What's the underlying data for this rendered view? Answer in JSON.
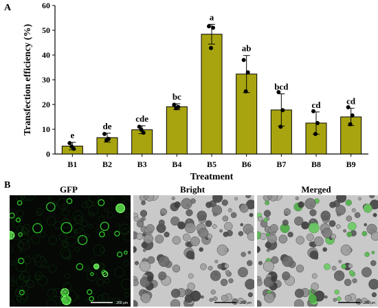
{
  "panels": {
    "a": "A",
    "b": "B"
  },
  "chart_data": {
    "type": "bar",
    "xlabel": "Treatment",
    "ylabel": "Transfection efficiency (%)",
    "ylim": [
      0,
      60
    ],
    "yticks": [
      "0",
      "10",
      "20",
      "30",
      "40",
      "50",
      "60"
    ],
    "categories": [
      "B1",
      "B2",
      "B3",
      "B4",
      "B5",
      "B6",
      "B7",
      "B8",
      "B9"
    ],
    "values": [
      3.2,
      6.6,
      9.8,
      19.1,
      48.4,
      32.3,
      17.8,
      12.5,
      15.0
    ],
    "errors": [
      1.5,
      1.8,
      1.6,
      1.2,
      4.0,
      7.5,
      6.5,
      4.5,
      3.5
    ],
    "significance": [
      "e",
      "de",
      "cde",
      "bc",
      "a",
      "ab",
      "bcd",
      "cd",
      "cd"
    ],
    "points": [
      [
        4.4,
        2.1,
        3.0
      ],
      [
        8.1,
        6.1,
        5.6
      ],
      [
        11.0,
        8.6,
        9.8
      ],
      [
        19.9,
        19.0,
        18.5
      ],
      [
        51.6,
        51.0,
        42.8
      ],
      [
        38.0,
        33.0,
        25.3
      ],
      [
        25.0,
        17.7,
        11.0
      ],
      [
        17.3,
        12.5,
        8.1
      ],
      [
        18.9,
        15.6,
        12.0
      ]
    ],
    "bar_color": "#a8a410",
    "point_color": "#000000"
  },
  "images": {
    "gfp": {
      "title": "GFP",
      "scale": "200 μm"
    },
    "bright": {
      "title": "Bright",
      "scale": "200 μm"
    },
    "merged": {
      "title": "Merged",
      "scale": "200 μm"
    }
  }
}
